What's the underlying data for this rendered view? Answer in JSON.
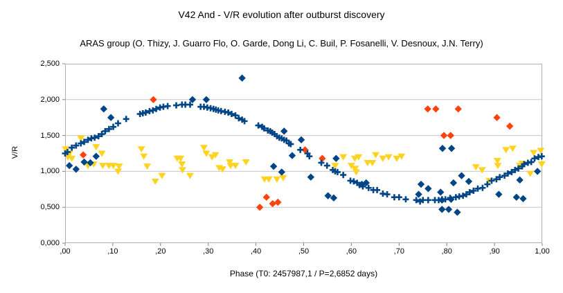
{
  "chart": {
    "title": "V42 And - V/R evolution after outburst discovery",
    "subtitle": "ARAS group (O. Thizy, J. Guarro Flo, O. Garde, Dong Li, C. Buil, P. Fosanelli, V. Desnoux, J.N. Terry)",
    "colors": {
      "blue": "#004586",
      "orange": "#FF420E",
      "yellow": "#FFD320",
      "gridline": "#c7c7c7",
      "frame": "#b0b0b0",
      "tick": "#808080"
    }
  },
  "chart_data": {
    "type": "scatter",
    "title": "V42 And - V/R evolution after outburst discovery",
    "subtitle": "ARAS group (O. Thizy, J. Guarro Flo, O. Garde, Dong Li, C. Buil, P. Fosanelli, V. Desnoux, J.N. Terry)",
    "xlabel": "Phase (T0: 2457987,1 / P=2,6852 days)",
    "ylabel": "V/R",
    "xlim": [
      0,
      1
    ],
    "ylim": [
      0,
      2.5
    ],
    "grid": "horizontal",
    "legend": "none",
    "x_ticks": {
      "values": [
        0,
        0.1,
        0.2,
        0.3,
        0.4,
        0.5,
        0.6,
        0.7,
        0.8,
        0.9,
        1.0
      ],
      "labels": [
        ",00",
        ",10",
        ",20",
        ",30",
        ",40",
        ",50",
        ",60",
        ",70",
        ",80",
        ",90",
        "1,00"
      ]
    },
    "y_ticks": {
      "values": [
        0,
        0.5,
        1.0,
        1.5,
        2.0,
        2.5
      ],
      "labels": [
        "0,000",
        "0,500",
        "1,000",
        "1,500",
        "2,000",
        "2,500"
      ]
    },
    "series": [
      {
        "name": "yellow-triangles",
        "marker": "triangle-down",
        "color": "#FFD320",
        "points": [
          [
            0.001,
            1.31
          ],
          [
            0.006,
            1.2
          ],
          [
            0.009,
            1.25
          ],
          [
            0.014,
            1.18
          ],
          [
            0.033,
            1.46
          ],
          [
            0.048,
            1.08
          ],
          [
            0.06,
            1.1
          ],
          [
            0.065,
            1.34
          ],
          [
            0.077,
            1.25
          ],
          [
            0.079,
            1.08
          ],
          [
            0.092,
            1.08
          ],
          [
            0.101,
            1.08
          ],
          [
            0.111,
            1.0
          ],
          [
            0.113,
            1.07
          ],
          [
            0.16,
            1.31
          ],
          [
            0.165,
            1.21
          ],
          [
            0.172,
            1.07
          ],
          [
            0.189,
            0.86
          ],
          [
            0.203,
            0.94
          ],
          [
            0.235,
            1.18
          ],
          [
            0.242,
            1.18
          ],
          [
            0.245,
            1.1
          ],
          [
            0.246,
            1.02
          ],
          [
            0.262,
            0.94
          ],
          [
            0.291,
            1.33
          ],
          [
            0.296,
            1.25
          ],
          [
            0.308,
            1.2
          ],
          [
            0.315,
            1.23
          ],
          [
            0.323,
            1.05
          ],
          [
            0.33,
            1.03
          ],
          [
            0.345,
            1.13
          ],
          [
            0.347,
            1.08
          ],
          [
            0.357,
            1.08
          ],
          [
            0.379,
            1.13
          ],
          [
            0.418,
            0.89
          ],
          [
            0.427,
            0.89
          ],
          [
            0.444,
            0.89
          ],
          [
            0.457,
            0.91
          ],
          [
            0.566,
            1.08
          ],
          [
            0.583,
            1.2
          ],
          [
            0.6,
            1.08
          ],
          [
            0.607,
            1.18
          ],
          [
            0.608,
            1.04
          ],
          [
            0.61,
            0.99
          ],
          [
            0.615,
            1.2
          ],
          [
            0.634,
            1.12
          ],
          [
            0.644,
            1.12
          ],
          [
            0.651,
            1.23
          ],
          [
            0.666,
            1.18
          ],
          [
            0.678,
            1.2
          ],
          [
            0.695,
            1.18
          ],
          [
            0.705,
            1.21
          ],
          [
            0.861,
            1.06
          ],
          [
            0.874,
            1.02
          ],
          [
            0.889,
            0.87
          ],
          [
            0.906,
            1.15
          ],
          [
            0.907,
            1.08
          ],
          [
            0.924,
            1.3
          ],
          [
            0.938,
            1.32
          ],
          [
            0.953,
            1.08
          ],
          [
            0.958,
            1.11
          ],
          [
            0.975,
            0.97
          ],
          [
            0.982,
            1.26
          ],
          [
            0.997,
            1.29
          ],
          [
            0.999,
            1.1
          ]
        ]
      },
      {
        "name": "blue-diamonds",
        "marker": "diamond",
        "color": "#004586",
        "points": [
          [
            0.009,
            1.08
          ],
          [
            0.023,
            1.03
          ],
          [
            0.04,
            1.13
          ],
          [
            0.053,
            1.12
          ],
          [
            0.065,
            1.21
          ],
          [
            0.081,
            1.87
          ],
          [
            0.096,
            1.75
          ],
          [
            0.267,
            2.0
          ],
          [
            0.296,
            2.0
          ],
          [
            0.371,
            2.3
          ],
          [
            0.437,
            1.07
          ],
          [
            0.454,
            0.99
          ],
          [
            0.459,
            1.56
          ],
          [
            0.476,
            1.22
          ],
          [
            0.495,
            1.44
          ],
          [
            0.515,
            0.92
          ],
          [
            0.551,
            0.66
          ],
          [
            0.563,
            0.63
          ],
          [
            0.568,
            1.18
          ],
          [
            0.622,
            0.82
          ],
          [
            0.631,
            0.84
          ],
          [
            0.741,
            0.68
          ],
          [
            0.746,
            0.82
          ],
          [
            0.761,
            0.76
          ],
          [
            0.787,
            0.71
          ],
          [
            0.79,
            0.6
          ],
          [
            0.79,
            0.47
          ],
          [
            0.791,
            1.32
          ],
          [
            0.804,
            0.47
          ],
          [
            0.809,
            0.61
          ],
          [
            0.81,
            1.32
          ],
          [
            0.814,
            0.84
          ],
          [
            0.822,
            0.43
          ],
          [
            0.831,
            0.94
          ],
          [
            0.846,
            0.86
          ],
          [
            0.909,
            0.68
          ],
          [
            0.946,
            0.64
          ],
          [
            0.953,
            0.88
          ],
          [
            0.96,
            0.62
          ],
          [
            0.99,
            1.0
          ]
        ]
      },
      {
        "name": "orange-diamonds",
        "marker": "diamond",
        "color": "#FF420E",
        "points": [
          [
            0.038,
            1.23
          ],
          [
            0.185,
            2.0
          ],
          [
            0.408,
            0.5
          ],
          [
            0.422,
            0.64
          ],
          [
            0.435,
            0.55
          ],
          [
            0.446,
            0.57
          ],
          [
            0.503,
            1.3
          ],
          [
            0.539,
            1.18
          ],
          [
            0.76,
            1.87
          ],
          [
            0.777,
            1.87
          ],
          [
            0.794,
            1.5
          ],
          [
            0.808,
            1.5
          ],
          [
            0.824,
            1.87
          ],
          [
            0.905,
            1.75
          ],
          [
            0.932,
            1.63
          ]
        ]
      },
      {
        "name": "blue-plus-mean-curve",
        "marker": "plus",
        "color": "#004586",
        "points": [
          [
            0.0,
            1.25
          ],
          [
            0.005,
            1.27
          ],
          [
            0.014,
            1.33
          ],
          [
            0.023,
            1.36
          ],
          [
            0.033,
            1.39
          ],
          [
            0.04,
            1.41
          ],
          [
            0.048,
            1.44
          ],
          [
            0.055,
            1.46
          ],
          [
            0.062,
            1.47
          ],
          [
            0.07,
            1.49
          ],
          [
            0.077,
            1.52
          ],
          [
            0.084,
            1.56
          ],
          [
            0.092,
            1.59
          ],
          [
            0.101,
            1.62
          ],
          [
            0.111,
            1.67
          ],
          [
            0.128,
            1.73
          ],
          [
            0.157,
            1.8
          ],
          [
            0.163,
            1.81
          ],
          [
            0.169,
            1.82
          ],
          [
            0.177,
            1.84
          ],
          [
            0.184,
            1.85
          ],
          [
            0.191,
            1.87
          ],
          [
            0.199,
            1.89
          ],
          [
            0.206,
            1.9
          ],
          [
            0.215,
            1.91
          ],
          [
            0.233,
            1.92
          ],
          [
            0.245,
            1.93
          ],
          [
            0.252,
            1.93
          ],
          [
            0.262,
            1.93
          ],
          [
            0.284,
            1.9
          ],
          [
            0.291,
            1.9
          ],
          [
            0.298,
            1.89
          ],
          [
            0.305,
            1.88
          ],
          [
            0.311,
            1.87
          ],
          [
            0.316,
            1.86
          ],
          [
            0.321,
            1.85
          ],
          [
            0.327,
            1.84
          ],
          [
            0.335,
            1.83
          ],
          [
            0.342,
            1.82
          ],
          [
            0.349,
            1.8
          ],
          [
            0.357,
            1.78
          ],
          [
            0.364,
            1.74
          ],
          [
            0.371,
            1.72
          ],
          [
            0.376,
            1.7
          ],
          [
            0.405,
            1.64
          ],
          [
            0.413,
            1.62
          ],
          [
            0.417,
            1.6
          ],
          [
            0.425,
            1.57
          ],
          [
            0.43,
            1.56
          ],
          [
            0.434,
            1.54
          ],
          [
            0.439,
            1.52
          ],
          [
            0.444,
            1.49
          ],
          [
            0.449,
            1.47
          ],
          [
            0.454,
            1.46
          ],
          [
            0.459,
            1.44
          ],
          [
            0.464,
            1.43
          ],
          [
            0.469,
            1.39
          ],
          [
            0.473,
            1.38
          ],
          [
            0.493,
            1.3
          ],
          [
            0.508,
            1.25
          ],
          [
            0.512,
            1.21
          ],
          [
            0.537,
            1.12
          ],
          [
            0.549,
            1.08
          ],
          [
            0.561,
            1.02
          ],
          [
            0.566,
            1.0
          ],
          [
            0.571,
            0.99
          ],
          [
            0.583,
            0.95
          ],
          [
            0.598,
            0.87
          ],
          [
            0.605,
            0.86
          ],
          [
            0.612,
            0.84
          ],
          [
            0.617,
            0.81
          ],
          [
            0.624,
            0.79
          ],
          [
            0.636,
            0.77
          ],
          [
            0.646,
            0.74
          ],
          [
            0.654,
            0.74
          ],
          [
            0.666,
            0.69
          ],
          [
            0.675,
            0.68
          ],
          [
            0.69,
            0.64
          ],
          [
            0.7,
            0.64
          ],
          [
            0.714,
            0.61
          ],
          [
            0.736,
            0.6
          ],
          [
            0.744,
            0.58
          ],
          [
            0.75,
            0.6
          ],
          [
            0.761,
            0.6
          ],
          [
            0.775,
            0.6
          ],
          [
            0.783,
            0.6
          ],
          [
            0.79,
            0.61
          ],
          [
            0.797,
            0.61
          ],
          [
            0.807,
            0.63
          ],
          [
            0.819,
            0.64
          ],
          [
            0.826,
            0.65
          ],
          [
            0.834,
            0.66
          ],
          [
            0.841,
            0.68
          ],
          [
            0.848,
            0.71
          ],
          [
            0.856,
            0.73
          ],
          [
            0.865,
            0.76
          ],
          [
            0.875,
            0.77
          ],
          [
            0.885,
            0.82
          ],
          [
            0.894,
            0.87
          ],
          [
            0.904,
            0.89
          ],
          [
            0.911,
            0.92
          ],
          [
            0.921,
            0.94
          ],
          [
            0.928,
            0.97
          ],
          [
            0.936,
            0.99
          ],
          [
            0.943,
            1.02
          ],
          [
            0.95,
            1.04
          ],
          [
            0.958,
            1.07
          ],
          [
            0.962,
            1.1
          ],
          [
            0.97,
            1.12
          ],
          [
            0.977,
            1.13
          ],
          [
            0.984,
            1.18
          ],
          [
            0.992,
            1.2
          ],
          [
            0.999,
            1.21
          ]
        ]
      }
    ]
  }
}
